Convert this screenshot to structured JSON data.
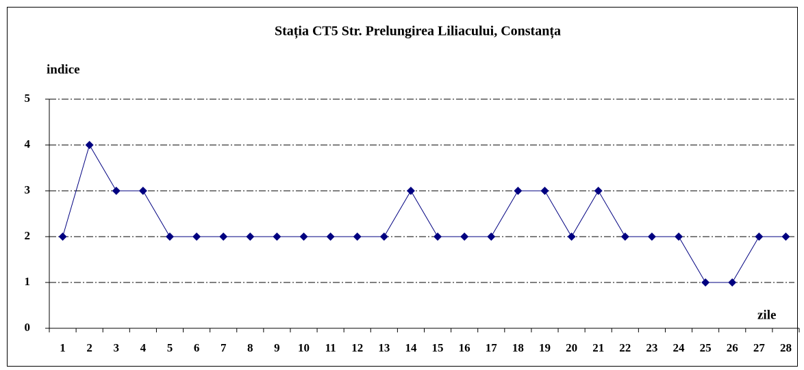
{
  "chart_data": {
    "type": "line",
    "title": "Stația CT5  Str. Prelungirea Liliacului, Constanța",
    "y_label": "indice",
    "x_label": "zile",
    "categories": [
      "1",
      "2",
      "3",
      "4",
      "5",
      "6",
      "7",
      "8",
      "9",
      "10",
      "11",
      "12",
      "13",
      "14",
      "15",
      "16",
      "17",
      "18",
      "19",
      "20",
      "21",
      "22",
      "23",
      "24",
      "25",
      "26",
      "27",
      "28"
    ],
    "series": [
      {
        "color": "#000080",
        "values": [
          2,
          4,
          3,
          3,
          2,
          2,
          2,
          2,
          2,
          2,
          2,
          2,
          2,
          3,
          2,
          2,
          2,
          3,
          3,
          2,
          3,
          2,
          2,
          2,
          1,
          1,
          2,
          2
        ]
      }
    ],
    "ylim": [
      0,
      5
    ],
    "yticks": [
      0,
      1,
      2,
      3,
      4,
      5
    ],
    "grid": true
  }
}
